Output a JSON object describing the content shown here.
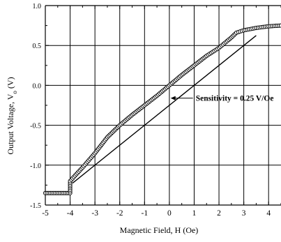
{
  "chart_data": {
    "type": "scatter",
    "xlabel": "Magnetic Field, H (Oe)",
    "ylabel": "Output Voltage, V",
    "ylabel_sub": "o",
    "ylabel_unit": " (V)",
    "xlim": [
      -5,
      4.5
    ],
    "ylim": [
      -1.5,
      1.0
    ],
    "x_ticks": [
      -5,
      -4,
      -3,
      -2,
      -1,
      0,
      1,
      2,
      3,
      4
    ],
    "x_tick_labels": [
      "-5",
      "-4",
      "-3",
      "-2",
      "-1",
      "0",
      "1",
      "2",
      "3",
      "4"
    ],
    "y_ticks": [
      -1.5,
      -1.0,
      -0.5,
      0.0,
      0.5,
      1.0
    ],
    "y_tick_labels": [
      "-1.5",
      "-1.0",
      "-0.5",
      "0.0",
      "0.5",
      "1.0"
    ],
    "grid": true,
    "annotation": {
      "text": "Sensitivity = 0.25 V/Oe",
      "arrow_from": [
        0.95,
        -0.16
      ],
      "arrow_to": [
        0.05,
        -0.16
      ]
    },
    "series": [
      {
        "marker": "open-circle",
        "points": [
          [
            -5.0,
            -1.35
          ],
          [
            -4.8,
            -1.35
          ],
          [
            -4.6,
            -1.35
          ],
          [
            -4.4,
            -1.35
          ],
          [
            -4.2,
            -1.35
          ],
          [
            -4.0,
            -1.35
          ],
          [
            -4.0,
            -1.2
          ],
          [
            -3.8,
            -1.13
          ],
          [
            -3.5,
            -1.03
          ],
          [
            -3.0,
            -0.85
          ],
          [
            -2.5,
            -0.65
          ],
          [
            -2.0,
            -0.5
          ],
          [
            -1.5,
            -0.37
          ],
          [
            -1.0,
            -0.25
          ],
          [
            -0.5,
            -0.13
          ],
          [
            0.0,
            0.0
          ],
          [
            0.5,
            0.13
          ],
          [
            1.0,
            0.25
          ],
          [
            1.5,
            0.37
          ],
          [
            2.0,
            0.47
          ],
          [
            2.5,
            0.6
          ],
          [
            2.7,
            0.66
          ],
          [
            3.0,
            0.69
          ],
          [
            3.5,
            0.72
          ],
          [
            4.0,
            0.74
          ],
          [
            4.5,
            0.75
          ]
        ]
      },
      {
        "type": "line",
        "marker": "none",
        "points": [
          [
            -3.9,
            -1.225
          ],
          [
            3.5,
            0.625
          ]
        ]
      }
    ]
  }
}
